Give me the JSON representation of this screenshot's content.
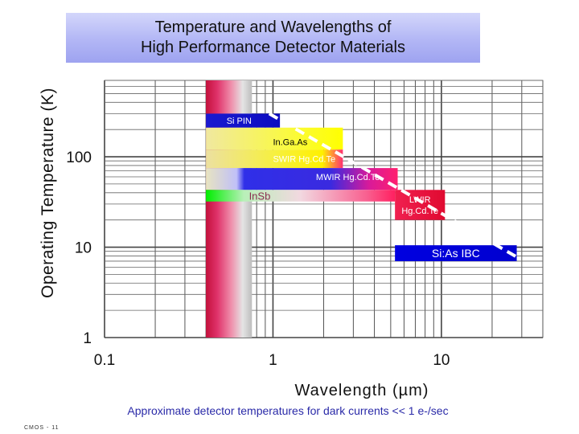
{
  "chart_data": {
    "type": "bar",
    "title_lines": [
      "Temperature and Wavelengths of",
      "High Performance Detector Materials"
    ],
    "xlabel": "Wavelength (µm)",
    "ylabel": "Operating Temperature (K)",
    "x_scale": "log",
    "y_scale": "log",
    "xlim": [
      0.1,
      40
    ],
    "ylim": [
      1,
      700
    ],
    "x_ticks": [
      {
        "value": 0.1,
        "label": "0.1"
      },
      {
        "value": 1,
        "label": "1"
      },
      {
        "value": 10,
        "label": "10"
      }
    ],
    "y_ticks": [
      {
        "value": 1,
        "label": "1"
      },
      {
        "value": 10,
        "label": "10"
      },
      {
        "value": 100,
        "label": "100"
      }
    ],
    "grid": true,
    "visible_band": {
      "x_start": 0.4,
      "x_end": 0.75
    },
    "series": [
      {
        "name": "Si PIN",
        "x_start": 0.4,
        "x_end": 1.1,
        "y_low": 210,
        "y_high": 300,
        "color": "#1212cc"
      },
      {
        "name": "In.Ga.As",
        "x_start": 0.4,
        "x_end": 2.6,
        "y_low": 120,
        "y_high": 210,
        "color": "#ffff00"
      },
      {
        "name": "SWIR Hg.Cd.Te",
        "x_start": 0.4,
        "x_end": 2.6,
        "y_low": 75,
        "y_high": 120,
        "color": "#ffff00"
      },
      {
        "name": "MWIR Hg.Cd.Te",
        "x_start": 0.4,
        "x_end": 5.5,
        "y_low": 43,
        "y_high": 75,
        "color": "#ff1f7a"
      },
      {
        "name": "InSb",
        "x_start": 0.4,
        "x_end": 5.3,
        "y_low": 32,
        "y_high": 43,
        "color": "#00e600"
      },
      {
        "name": "LWIR Hg.Cd.Te",
        "x_start": 5.3,
        "x_end": 10.5,
        "y_low": 20,
        "y_high": 43,
        "color": "#f01040"
      },
      {
        "name": "Si:As IBC",
        "x_start": 5.3,
        "x_end": 28,
        "y_low": 7,
        "y_high": 10.5,
        "color": "#0000e0"
      }
    ],
    "trend_line": {
      "points": [
        [
          0.95,
          300
        ],
        [
          29,
          7.5
        ]
      ],
      "style": "dashed",
      "color": "#ffffff"
    }
  },
  "annotation": {
    "note": "Approximate detector temperatures for dark currents << 1 e-/sec",
    "footer": "CMOS - 11"
  }
}
